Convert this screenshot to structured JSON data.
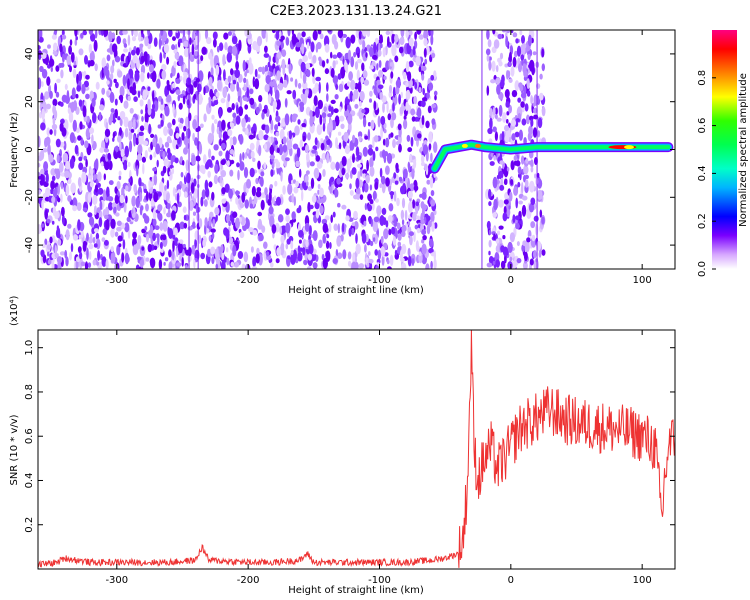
{
  "title": "C2E3.2023.131.13.24.G21",
  "chart_data": [
    {
      "type": "heatmap",
      "xlabel": "Height of straight line (km)",
      "ylabel": "Frequency (Hz)",
      "xlim": [
        -360,
        125
      ],
      "ylim": [
        -50,
        50
      ],
      "xticks": [
        -300,
        -200,
        -100,
        0,
        100
      ],
      "yticks": [
        -40,
        -20,
        0,
        20,
        40
      ],
      "colorbar": {
        "label": "Normalized spectral amplitude",
        "range": [
          0,
          1
        ],
        "ticks": [
          "0.0",
          "0.2",
          "0.4",
          "0.6",
          "0.8"
        ],
        "colormap": [
          "#ffffff",
          "#c8a0ff",
          "#6400ff",
          "#0000ff",
          "#00c8ff",
          "#00ff80",
          "#00ff00",
          "#ffff00",
          "#ff8000",
          "#ff0000",
          "#ff0080"
        ]
      },
      "signal_band": {
        "description_points_x": [
          -58,
          -50,
          -40,
          -30,
          -20,
          0,
          20,
          40,
          60,
          80,
          100,
          120
        ],
        "description_points_y": [
          -8,
          0,
          1,
          2,
          1,
          0,
          1,
          1,
          1,
          1,
          1,
          1
        ]
      }
    },
    {
      "type": "line",
      "xlabel": "Height of straight line (km)",
      "ylabel": "SNR (10 * v/v)",
      "y_multiplier": "(x10⁴)",
      "xlim": [
        -360,
        125
      ],
      "ylim": [
        0,
        1.08
      ],
      "xticks": [
        -300,
        -200,
        -100,
        0,
        100
      ],
      "yticks": [
        "0.2",
        "0.4",
        "0.6",
        "0.8",
        "1.0"
      ],
      "series": [
        {
          "color": "#ee3333",
          "x": [
            -360,
            -345,
            -340,
            -320,
            -300,
            -280,
            -260,
            -240,
            -235,
            -230,
            -200,
            -180,
            -160,
            -155,
            -150,
            -120,
            -100,
            -80,
            -60,
            -50,
            -40,
            -36,
            -33,
            -31,
            -30,
            -28,
            -25,
            -20,
            -15,
            -10,
            -5,
            0,
            5,
            10,
            20,
            30,
            40,
            50,
            60,
            70,
            80,
            90,
            100,
            105,
            110,
            113,
            115,
            117,
            120,
            125
          ],
          "y": [
            0.02,
            0.03,
            0.05,
            0.03,
            0.03,
            0.03,
            0.03,
            0.04,
            0.1,
            0.04,
            0.03,
            0.03,
            0.04,
            0.07,
            0.03,
            0.03,
            0.03,
            0.03,
            0.04,
            0.05,
            0.07,
            0.15,
            0.4,
            0.8,
            1.05,
            0.55,
            0.4,
            0.5,
            0.55,
            0.45,
            0.5,
            0.55,
            0.62,
            0.65,
            0.68,
            0.72,
            0.68,
            0.66,
            0.65,
            0.64,
            0.63,
            0.62,
            0.6,
            0.58,
            0.55,
            0.35,
            0.22,
            0.4,
            0.55,
            0.6
          ]
        }
      ]
    }
  ]
}
